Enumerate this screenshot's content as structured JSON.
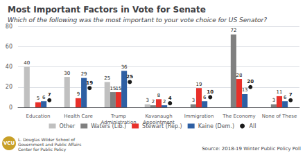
{
  "chart_data": {
    "type": "bar",
    "title": "Most Important Factors in Vote for Senate",
    "subtitle": "Which of the following was the most important to your vote choice for US Senator?",
    "categories": [
      "Education",
      "Health Care",
      "Trump\nAdministration",
      "Kavanaugh\nAppointment",
      "Immigration",
      "The Economy",
      "None of These"
    ],
    "series": [
      {
        "name": "Other",
        "type": "bar",
        "color": "#c0c0c0",
        "values": [
          40,
          30,
          25,
          3,
          0,
          0,
          0
        ],
        "value_labels": [
          "40",
          "30",
          "25",
          "3",
          null,
          null,
          null
        ]
      },
      {
        "name": "Waters (Lib.)",
        "type": "bar",
        "color": "#808080",
        "values": [
          0,
          0,
          15,
          2,
          3,
          72,
          3
        ],
        "value_labels": [
          null,
          null,
          "15",
          "2",
          "3",
          "72",
          "3"
        ]
      },
      {
        "name": "Stewart (Rep.)",
        "type": "bar",
        "color": "#e8302a",
        "values": [
          5,
          9,
          15,
          8,
          19,
          28,
          11
        ],
        "value_labels": [
          "5",
          "9",
          "15",
          "8",
          "19",
          "28",
          "11"
        ]
      },
      {
        "name": "Kaine (Dem.)",
        "type": "bar",
        "color": "#2e5fa3",
        "values": [
          6,
          29,
          36,
          2,
          6,
          13,
          6
        ],
        "value_labels": [
          "6",
          "29",
          "36",
          "2",
          "6",
          "13",
          "6"
        ]
      },
      {
        "name": "All",
        "type": "scatter",
        "marker": "circle",
        "color": "#1a1a1a",
        "values": [
          7,
          19,
          25,
          4,
          10,
          20,
          7
        ],
        "value_labels": [
          "7",
          "19",
          "25",
          "4",
          "10",
          "20",
          "7"
        ]
      }
    ],
    "ylim": [
      0,
      80
    ],
    "yticks": [
      0,
      20,
      40,
      60,
      80
    ],
    "grid": true,
    "legend": "bottom",
    "data_labels": true,
    "annotations": [
      {
        "text": "L. Douglas Wilder School of\nGovernment and Public Affairs\nCenter for Public Policy"
      },
      {
        "text": "Source: 2018-19 Winter Public Policy Poll"
      },
      {
        "text": "VCU",
        "color": "#c8a028"
      }
    ]
  }
}
